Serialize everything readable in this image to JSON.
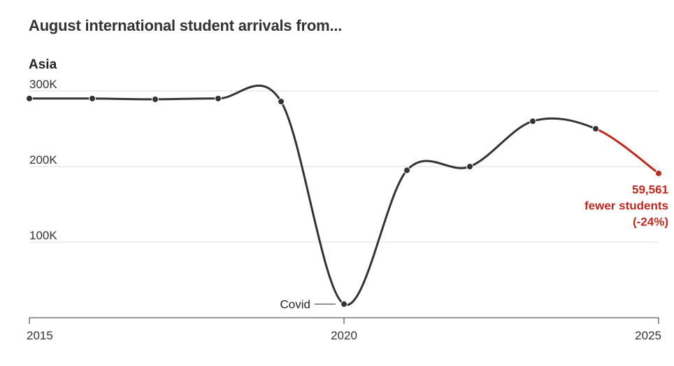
{
  "header": {
    "title": "August international student arrivals from...",
    "subtitle": "Asia"
  },
  "colors": {
    "line": "#333333",
    "highlight": "#c0281c",
    "grid": "#dddddd",
    "axis": "#333333"
  },
  "chart_data": {
    "type": "line",
    "title": "August international student arrivals from...",
    "subtitle": "Asia",
    "xlabel": "",
    "ylabel": "",
    "x": [
      2015,
      2016,
      2017,
      2018,
      2019,
      2020,
      2021,
      2022,
      2023,
      2024,
      2025
    ],
    "series": [
      {
        "values": [
          290000,
          290000,
          289000,
          290000,
          286000,
          18000,
          195000,
          200000,
          260000,
          250000,
          191000
        ]
      }
    ],
    "highlight_segment": {
      "from": 2024,
      "to": 2025
    },
    "xlim": [
      2015,
      2025
    ],
    "ylim": [
      0,
      300000
    ],
    "x_ticks": [
      {
        "value": 2015,
        "label": "2015"
      },
      {
        "value": 2020,
        "label": "2020"
      },
      {
        "value": 2025,
        "label": "2025"
      }
    ],
    "y_ticks": [
      {
        "value": 100000,
        "label": "100K"
      },
      {
        "value": 200000,
        "label": "200K"
      },
      {
        "value": 300000,
        "label": "300K"
      }
    ],
    "annotations": [
      {
        "x": 2020,
        "text": "Covid"
      },
      {
        "x": 2025,
        "lines": [
          "59,561",
          "fewer students",
          "(-24%)"
        ]
      }
    ],
    "grid": true
  }
}
